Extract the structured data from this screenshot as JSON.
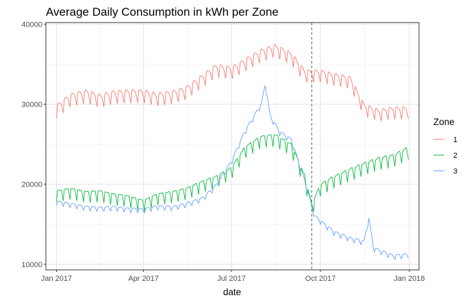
{
  "chart_data": {
    "type": "line",
    "title": "Average Daily Consumption in kWh per Zone",
    "xlabel": "date",
    "ylabel": "",
    "x_ticks": [
      "Jan 2017",
      "Apr 2017",
      "Jul 2017",
      "Oct 2017",
      "Jan 2018"
    ],
    "x_tick_dates": [
      "2017-01-01",
      "2017-04-01",
      "2017-07-01",
      "2017-10-01",
      "2018-01-01"
    ],
    "xlim": [
      "2016-12-21",
      "2018-01-11"
    ],
    "y_ticks": [
      10000,
      20000,
      30000,
      40000
    ],
    "ylim": [
      9300,
      40200
    ],
    "grid": true,
    "legend": {
      "title": "Zone",
      "position": "right"
    },
    "vline": {
      "date": "2017-09-22",
      "style": "dashed",
      "color": "#5a5a5a"
    },
    "series": [
      {
        "name": "1",
        "color": "#F8766D",
        "points": [
          [
            "2017-01-01",
            29400
          ],
          [
            "2017-01-15",
            30800
          ],
          [
            "2017-02-01",
            31300
          ],
          [
            "2017-02-15",
            30700
          ],
          [
            "2017-03-01",
            31200
          ],
          [
            "2017-03-15",
            31300
          ],
          [
            "2017-04-01",
            31300
          ],
          [
            "2017-04-15",
            30900
          ],
          [
            "2017-05-01",
            31200
          ],
          [
            "2017-05-15",
            31700
          ],
          [
            "2017-06-01",
            33200
          ],
          [
            "2017-06-15",
            34500
          ],
          [
            "2017-07-01",
            34200
          ],
          [
            "2017-07-15",
            35200
          ],
          [
            "2017-08-01",
            36400
          ],
          [
            "2017-08-15",
            37000
          ],
          [
            "2017-09-01",
            36000
          ],
          [
            "2017-09-15",
            33800
          ],
          [
            "2017-10-01",
            33800
          ],
          [
            "2017-10-15",
            33400
          ],
          [
            "2017-11-01",
            33000
          ],
          [
            "2017-11-15",
            29600
          ],
          [
            "2017-12-01",
            28900
          ],
          [
            "2017-12-15",
            29200
          ],
          [
            "2017-12-31",
            29200
          ]
        ],
        "weekly_amplitude": 1200
      },
      {
        "name": "2",
        "color": "#00BA38",
        "points": [
          [
            "2017-01-01",
            18900
          ],
          [
            "2017-01-15",
            19200
          ],
          [
            "2017-02-01",
            18800
          ],
          [
            "2017-02-15",
            18900
          ],
          [
            "2017-03-01",
            18500
          ],
          [
            "2017-03-15",
            18300
          ],
          [
            "2017-04-01",
            17700
          ],
          [
            "2017-04-15",
            18500
          ],
          [
            "2017-05-01",
            18800
          ],
          [
            "2017-05-15",
            19200
          ],
          [
            "2017-06-01",
            20100
          ],
          [
            "2017-06-15",
            20700
          ],
          [
            "2017-07-01",
            21800
          ],
          [
            "2017-07-15",
            24400
          ],
          [
            "2017-08-01",
            25700
          ],
          [
            "2017-08-15",
            25900
          ],
          [
            "2017-09-01",
            24700
          ],
          [
            "2017-09-15",
            20700
          ],
          [
            "2017-09-22",
            17200
          ],
          [
            "2017-10-01",
            19700
          ],
          [
            "2017-10-15",
            20700
          ],
          [
            "2017-11-01",
            21600
          ],
          [
            "2017-11-15",
            22300
          ],
          [
            "2017-12-01",
            23000
          ],
          [
            "2017-12-15",
            23300
          ],
          [
            "2017-12-31",
            24300
          ]
        ],
        "weekly_amplitude": 1300
      },
      {
        "name": "3",
        "color": "#619CFF",
        "points": [
          [
            "2017-01-01",
            17800
          ],
          [
            "2017-01-15",
            17500
          ],
          [
            "2017-02-01",
            17100
          ],
          [
            "2017-02-15",
            17000
          ],
          [
            "2017-03-01",
            17100
          ],
          [
            "2017-03-15",
            16900
          ],
          [
            "2017-04-01",
            16800
          ],
          [
            "2017-04-15",
            17200
          ],
          [
            "2017-05-01",
            17100
          ],
          [
            "2017-05-15",
            17500
          ],
          [
            "2017-06-01",
            18200
          ],
          [
            "2017-06-15",
            19800
          ],
          [
            "2017-07-01",
            22800
          ],
          [
            "2017-07-15",
            26600
          ],
          [
            "2017-08-01",
            30000
          ],
          [
            "2017-08-05",
            32500
          ],
          [
            "2017-08-10",
            28500
          ],
          [
            "2017-08-20",
            26500
          ],
          [
            "2017-09-01",
            25500
          ],
          [
            "2017-09-15",
            20300
          ],
          [
            "2017-09-25",
            16000
          ],
          [
            "2017-10-15",
            14000
          ],
          [
            "2017-11-01",
            13200
          ],
          [
            "2017-11-15",
            12800
          ],
          [
            "2017-11-20",
            15700
          ],
          [
            "2017-11-25",
            12000
          ],
          [
            "2017-12-15",
            11000
          ],
          [
            "2017-12-31",
            11200
          ]
        ],
        "weekly_amplitude": 400
      }
    ]
  }
}
